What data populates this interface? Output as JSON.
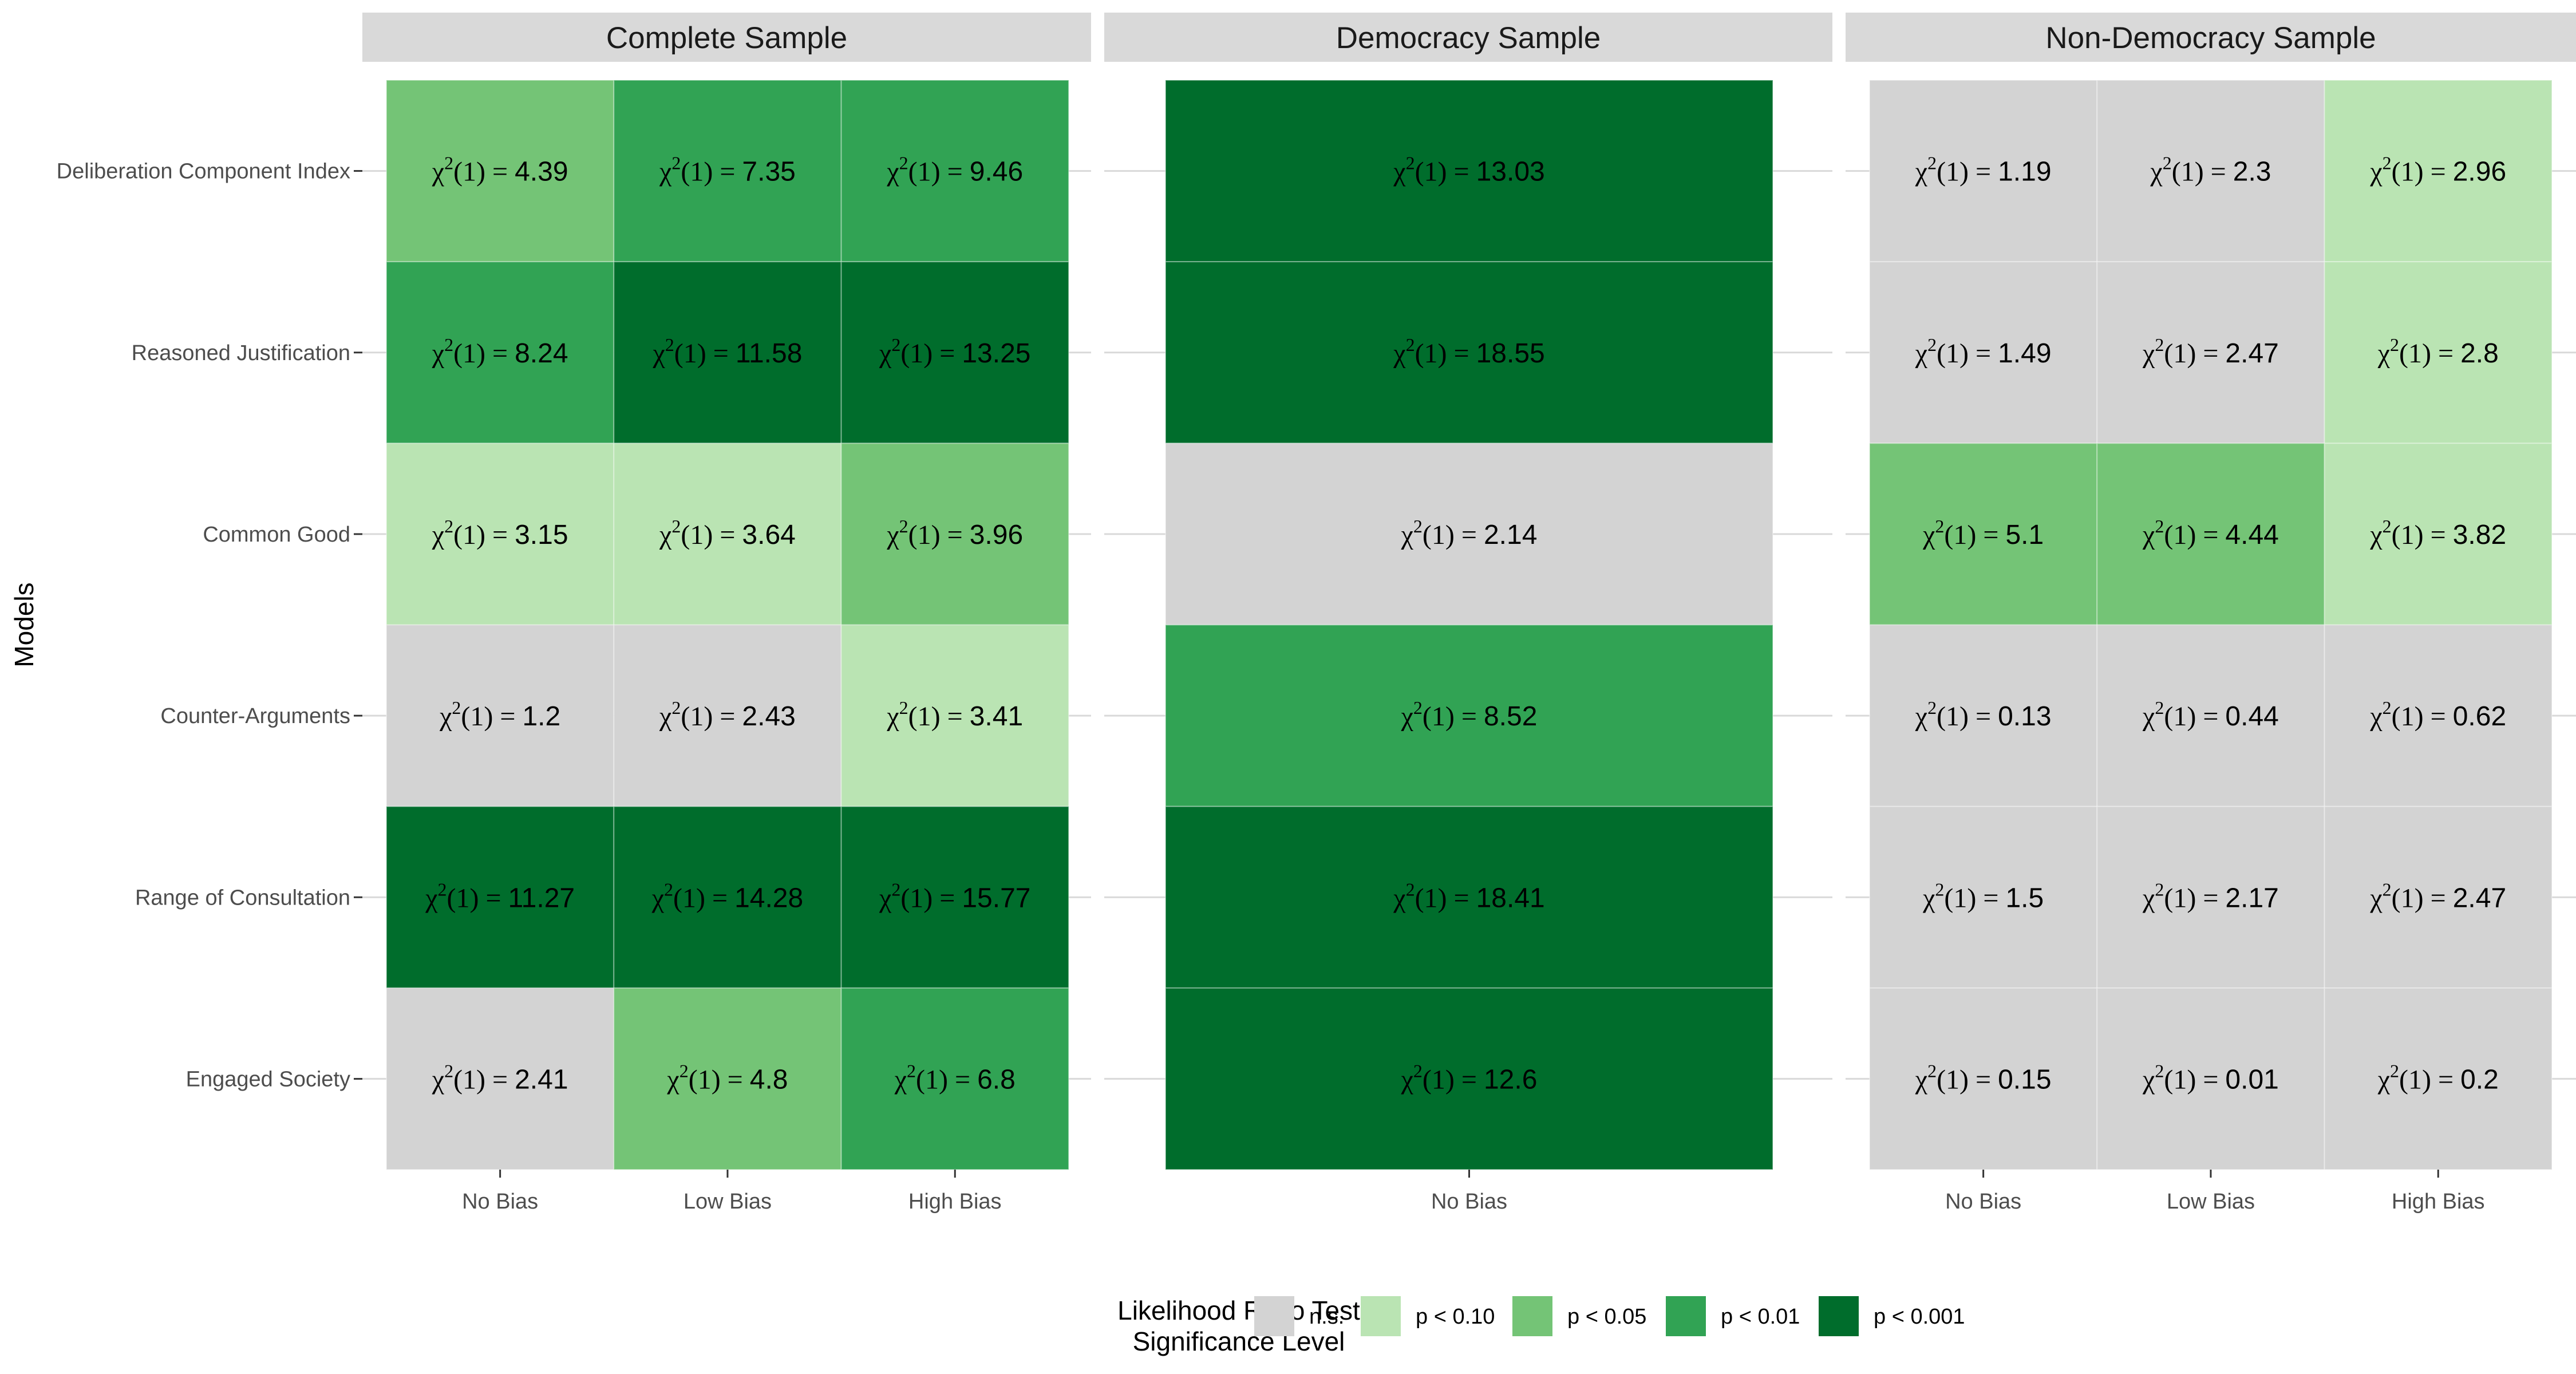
{
  "chart_data": {
    "type": "heatmap",
    "ylabel": "Models",
    "models": [
      "Deliberation Component Index",
      "Reasoned Justification",
      "Common Good",
      "Counter-Arguments",
      "Range of Consultation",
      "Engaged Society"
    ],
    "colors": {
      "n.s.": "#d3d3d3",
      "p < 0.10": "#bae4b3",
      "p < 0.05": "#74c476",
      "p < 0.01": "#31a354",
      "p < 0.001": "#006d2c"
    },
    "legend": {
      "title_lines": [
        "Likelihood Ratio Test",
        "Significance Level"
      ],
      "levels": [
        "n.s.",
        "p < 0.10",
        "p < 0.05",
        "p < 0.01",
        "p < 0.001"
      ],
      "position": "bottom"
    },
    "panels": [
      {
        "title": "Complete Sample",
        "columns": [
          "No Bias",
          "Low Bias",
          "High Bias"
        ],
        "values": [
          [
            "4.39",
            "7.35",
            "9.46"
          ],
          [
            "8.24",
            "11.58",
            "13.25"
          ],
          [
            "3.15",
            "3.64",
            "3.96"
          ],
          [
            "1.2",
            "2.43",
            "3.41"
          ],
          [
            "11.27",
            "14.28",
            "15.77"
          ],
          [
            "2.41",
            "4.8",
            "6.8"
          ]
        ],
        "levels": [
          [
            "p < 0.05",
            "p < 0.01",
            "p < 0.01"
          ],
          [
            "p < 0.01",
            "p < 0.001",
            "p < 0.001"
          ],
          [
            "p < 0.10",
            "p < 0.10",
            "p < 0.05"
          ],
          [
            "n.s.",
            "n.s.",
            "p < 0.10"
          ],
          [
            "p < 0.001",
            "p < 0.001",
            "p < 0.001"
          ],
          [
            "n.s.",
            "p < 0.05",
            "p < 0.01"
          ]
        ]
      },
      {
        "title": "Democracy Sample",
        "columns": [
          "No Bias"
        ],
        "values": [
          [
            "13.03"
          ],
          [
            "18.55"
          ],
          [
            "2.14"
          ],
          [
            "8.52"
          ],
          [
            "18.41"
          ],
          [
            "12.6"
          ]
        ],
        "levels": [
          [
            "p < 0.001"
          ],
          [
            "p < 0.001"
          ],
          [
            "n.s."
          ],
          [
            "p < 0.01"
          ],
          [
            "p < 0.001"
          ],
          [
            "p < 0.001"
          ]
        ]
      },
      {
        "title": "Non-Democracy Sample",
        "columns": [
          "No Bias",
          "Low Bias",
          "High Bias"
        ],
        "values": [
          [
            "1.19",
            "2.3",
            "2.96"
          ],
          [
            "1.49",
            "2.47",
            "2.8"
          ],
          [
            "5.1",
            "4.44",
            "3.82"
          ],
          [
            "0.13",
            "0.44",
            "0.62"
          ],
          [
            "1.5",
            "2.17",
            "2.47"
          ],
          [
            "0.15",
            "0.01",
            "0.2"
          ]
        ],
        "levels": [
          [
            "n.s.",
            "n.s.",
            "p < 0.10"
          ],
          [
            "n.s.",
            "n.s.",
            "p < 0.10"
          ],
          [
            "p < 0.05",
            "p < 0.05",
            "p < 0.10"
          ],
          [
            "n.s.",
            "n.s.",
            "n.s."
          ],
          [
            "n.s.",
            "n.s.",
            "n.s."
          ],
          [
            "n.s.",
            "n.s.",
            "n.s."
          ]
        ]
      }
    ]
  }
}
